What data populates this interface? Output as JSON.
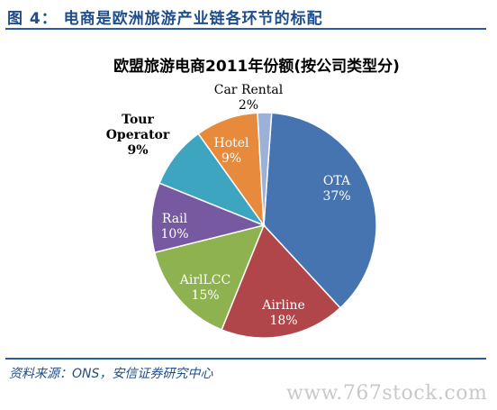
{
  "figure_title": "图 4：  电商是欧洲旅游产业链各环节的标配",
  "source_note": "资料来源：ONS，安信证券研究中心",
  "watermark": "www.767stock.com",
  "colors": {
    "accent": "#1f4e8c",
    "OTA": "#4674b0",
    "Airline": "#b0464a",
    "AirlLCC": "#8eb24f",
    "Rail": "#7659a0",
    "Tour Operator": "#3ea5c0",
    "Hotel": "#e78a3c",
    "Car Rental": "#9db0d8"
  },
  "chart_data": {
    "type": "pie",
    "title": "欧盟旅游电商2011年份额(按公司类型分)",
    "slices": [
      {
        "name": "OTA",
        "value": 37,
        "label": "37%"
      },
      {
        "name": "Airline",
        "value": 18,
        "label": "18%"
      },
      {
        "name": "AirlLCC",
        "value": 15,
        "label": "15%"
      },
      {
        "name": "Rail",
        "value": 10,
        "label": "10%"
      },
      {
        "name": "Tour Operator",
        "name_lines": [
          "Tour",
          "Operator"
        ],
        "value": 9,
        "label": "9%"
      },
      {
        "name": "Hotel",
        "value": 9,
        "label": "9%"
      },
      {
        "name": "Car Rental",
        "value": 2,
        "label": "2%"
      }
    ]
  }
}
